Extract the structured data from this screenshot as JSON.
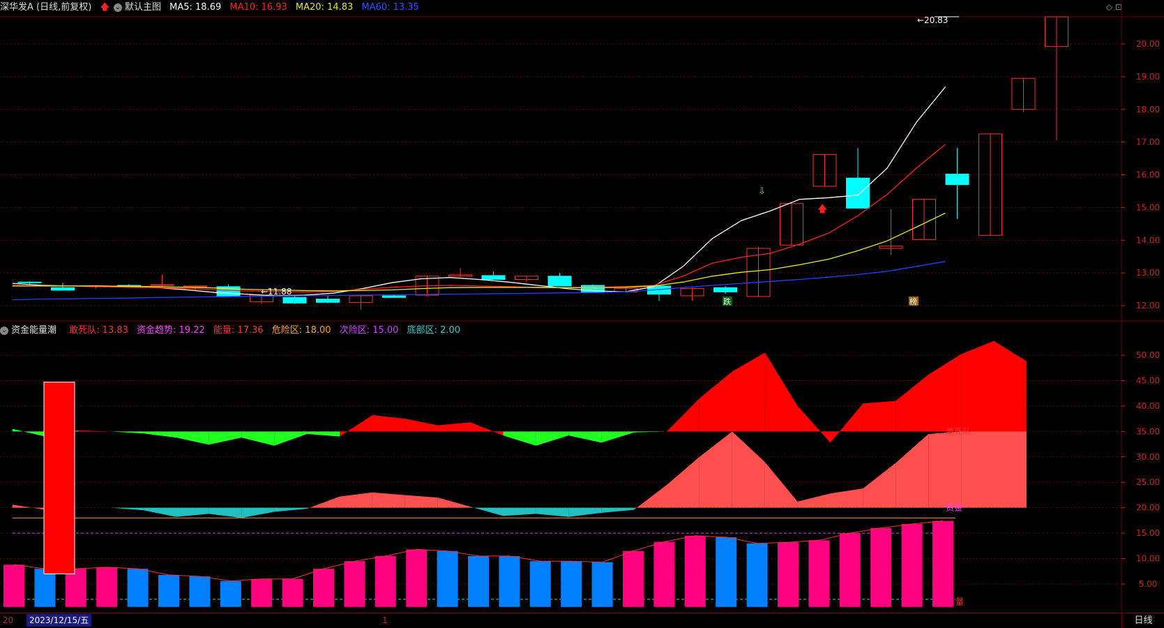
{
  "header": {
    "stock_title": "深华发A (日线,前复权)",
    "template_label": "默认主图",
    "ma5": {
      "label": "MA5: 18.69",
      "color": "#ffffff"
    },
    "ma10": {
      "label": "MA10: 16.93",
      "color": "#ff2020"
    },
    "ma20": {
      "label": "MA20: 14.83",
      "color": "#e8e820"
    },
    "ma60": {
      "label": "MA60: 13.35",
      "color": "#2040ff"
    }
  },
  "top_icons": "◇ ⊡",
  "main_chart": {
    "y_ticks": [
      "20.00",
      "19.00",
      "18.00",
      "17.00",
      "16.00",
      "15.00",
      "14.00",
      "13.00",
      "12.00"
    ],
    "high_label": "←20.83",
    "low_label": "←11.88",
    "marker_fall": "跌",
    "marker_rank": "榜"
  },
  "sub_header": {
    "indicator_name": "资金能量潮",
    "items": [
      {
        "label": "敢死队: 13.83",
        "color": "#ff3030"
      },
      {
        "label": "资金趋势: 19.22",
        "color": "#ff40ff"
      },
      {
        "label": "能量: 17.36",
        "color": "#ff3030"
      },
      {
        "label": "危险区: 18.00",
        "color": "#ffa020"
      },
      {
        "label": "次险区: 15.00",
        "color": "#d040ff"
      },
      {
        "label": "底部区: 2.00",
        "color": "#30d0d0"
      }
    ]
  },
  "sub_chart": {
    "y_ticks": [
      "50.00",
      "45.00",
      "40.00",
      "35.00",
      "30.00",
      "25.00",
      "20.00",
      "15.00",
      "10.00",
      "5.00"
    ],
    "label_dare": "敢死队",
    "label_fund": "资金",
    "label_energy": "量"
  },
  "bottom": {
    "left_text": "20",
    "date": "2023/12/15/五",
    "mid_text": "1",
    "period": "日线"
  },
  "colors": {
    "up": "#ff3030",
    "down": "#00ffff",
    "grid": "#6a0000",
    "energy_up": "#ff0080",
    "energy_down": "#0080ff"
  }
}
